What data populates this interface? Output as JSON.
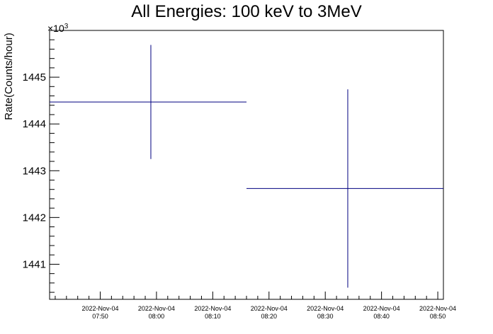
{
  "chart_data": {
    "type": "scatter",
    "title": "All Energies:  100 keV to 3MeV",
    "xlabel": "",
    "ylabel": "Rate(Counts/hour)",
    "y_multiplier": "×10",
    "y_multiplier_exp": "3",
    "xlim": [
      "2022-11-04 07:41",
      "2022-11-04 08:51"
    ],
    "ylim": [
      1440.25,
      1446.0
    ],
    "grid": false,
    "series": [
      {
        "color": "#000080",
        "points": [
          {
            "x": "2022-11-04 07:59",
            "y": 1444.47,
            "x_start": "2022-11-04 07:41",
            "x_end": "2022-11-04 08:16",
            "y_err": 1.22
          },
          {
            "x": "2022-11-04 08:34",
            "y": 1442.62,
            "x_start": "2022-11-04 08:16",
            "x_end": "2022-11-04 08:51",
            "y_err": 2.12
          }
        ]
      }
    ],
    "y_ticks": [
      1441,
      1442,
      1443,
      1444,
      1445
    ],
    "x_ticks": [
      {
        "t": "2022-11-04 07:50",
        "date": "2022-Nov-04",
        "time": "07:50"
      },
      {
        "t": "2022-11-04 08:00",
        "date": "2022-Nov-04",
        "time": "08:00"
      },
      {
        "t": "2022-11-04 08:10",
        "date": "2022-Nov-04",
        "time": "08:10"
      },
      {
        "t": "2022-11-04 08:20",
        "date": "2022-Nov-04",
        "time": "08:20"
      },
      {
        "t": "2022-11-04 08:30",
        "date": "2022-Nov-04",
        "time": "08:30"
      },
      {
        "t": "2022-11-04 08:40",
        "date": "2022-Nov-04",
        "time": "08:40"
      },
      {
        "t": "2022-11-04 08:50",
        "date": "2022-Nov-04",
        "time": "08:50"
      }
    ]
  }
}
